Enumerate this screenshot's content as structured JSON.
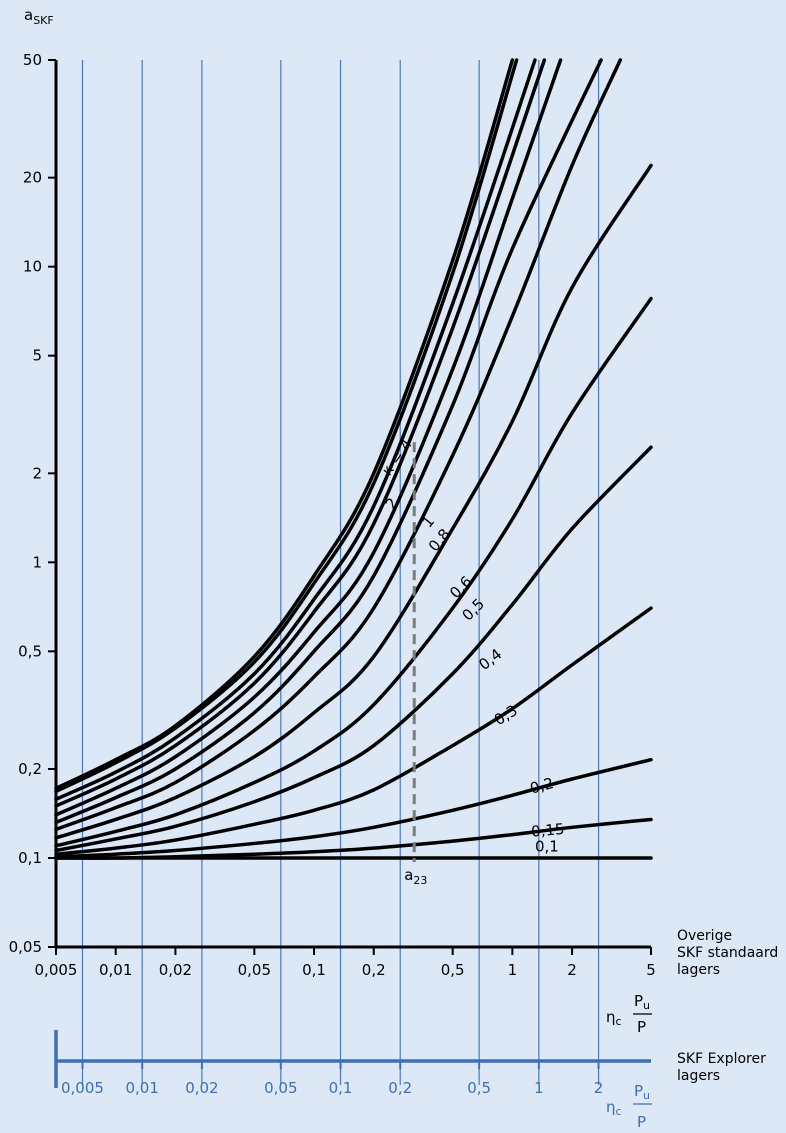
{
  "chart_data": {
    "type": "line",
    "ylabel_main": "a",
    "ylabel_sub": "SKF",
    "yscale": "log",
    "xscale": "log",
    "ylim": [
      0.05,
      50
    ],
    "xlim": [
      0.005,
      5
    ],
    "y_ticks": [
      "50",
      "20",
      "10",
      "5",
      "2",
      "1",
      "0,5",
      "0,2",
      "0,1",
      "0,05"
    ],
    "x_ticks_standard": [
      "0,005",
      "0,01",
      "0,02",
      "0,05",
      "0,1",
      "0,2",
      "0,5",
      "1",
      "2",
      "5"
    ],
    "x_ticks_explorer": [
      "0,005",
      "0,01",
      "0,02",
      "0,05",
      "0,1",
      "0,2",
      "0,5",
      "1",
      "2"
    ],
    "x_axis_label": {
      "eta": "η",
      "eta_sub": "c",
      "numerator": "P",
      "numerator_sub": "u",
      "denominator": "P"
    },
    "axis_standard_label": [
      "Overige",
      "SKF standaard",
      "lagers"
    ],
    "axis_explorer_label": [
      "SKF Explorer",
      "lagers"
    ],
    "marker_label": "a",
    "marker_sub": "23",
    "marker_x": 0.32,
    "series": [
      {
        "name": "κ = 4",
        "points": [
          [
            0.005,
            0.172
          ],
          [
            0.01,
            0.215
          ],
          [
            0.02,
            0.28
          ],
          [
            0.05,
            0.48
          ],
          [
            0.1,
            0.9
          ],
          [
            0.2,
            2.0
          ],
          [
            0.5,
            10.5
          ],
          [
            1,
            50
          ]
        ]
      },
      {
        "name": "2",
        "points": [
          [
            0.005,
            0.168
          ],
          [
            0.01,
            0.21
          ],
          [
            0.02,
            0.275
          ],
          [
            0.05,
            0.46
          ],
          [
            0.1,
            0.85
          ],
          [
            0.2,
            1.85
          ],
          [
            0.5,
            9.5
          ],
          [
            1.05,
            50
          ]
        ]
      },
      {
        "name": "1",
        "points": [
          [
            0.005,
            0.158
          ],
          [
            0.01,
            0.195
          ],
          [
            0.02,
            0.255
          ],
          [
            0.05,
            0.42
          ],
          [
            0.1,
            0.75
          ],
          [
            0.2,
            1.55
          ],
          [
            0.5,
            7.5
          ],
          [
            1.3,
            50
          ]
        ]
      },
      {
        "name": "0,8",
        "points": [
          [
            0.005,
            0.15
          ],
          [
            0.01,
            0.185
          ],
          [
            0.02,
            0.24
          ],
          [
            0.05,
            0.39
          ],
          [
            0.1,
            0.68
          ],
          [
            0.2,
            1.35
          ],
          [
            0.5,
            6.2
          ],
          [
            1.45,
            50
          ]
        ]
      },
      {
        "name": "0,6",
        "points": [
          [
            0.005,
            0.14
          ],
          [
            0.01,
            0.172
          ],
          [
            0.02,
            0.22
          ],
          [
            0.05,
            0.35
          ],
          [
            0.1,
            0.58
          ],
          [
            0.2,
            1.08
          ],
          [
            0.5,
            4.5
          ],
          [
            1,
            17
          ],
          [
            1.75,
            50
          ]
        ]
      },
      {
        "name": "0,5",
        "points": [
          [
            0.005,
            0.132
          ],
          [
            0.01,
            0.16
          ],
          [
            0.02,
            0.2
          ],
          [
            0.05,
            0.31
          ],
          [
            0.1,
            0.5
          ],
          [
            0.2,
            0.9
          ],
          [
            0.5,
            3.4
          ],
          [
            1,
            11.5
          ],
          [
            2.8,
            50
          ]
        ]
      },
      {
        "name": "0,4",
        "points": [
          [
            0.005,
            0.125
          ],
          [
            0.01,
            0.148
          ],
          [
            0.02,
            0.18
          ],
          [
            0.05,
            0.27
          ],
          [
            0.1,
            0.41
          ],
          [
            0.2,
            0.7
          ],
          [
            0.5,
            2.3
          ],
          [
            1,
            6.8
          ],
          [
            2,
            22
          ],
          [
            3.5,
            50
          ]
        ]
      },
      {
        "name": "0,3",
        "points": [
          [
            0.005,
            0.117
          ],
          [
            0.01,
            0.135
          ],
          [
            0.02,
            0.16
          ],
          [
            0.05,
            0.22
          ],
          [
            0.1,
            0.31
          ],
          [
            0.2,
            0.48
          ],
          [
            0.5,
            1.3
          ],
          [
            1,
            3.0
          ],
          [
            2,
            8.5
          ],
          [
            5,
            22
          ]
        ]
      },
      {
        "name": "",
        "points": [
          [
            0.005,
            0.11
          ],
          [
            0.01,
            0.123
          ],
          [
            0.02,
            0.14
          ],
          [
            0.05,
            0.18
          ],
          [
            0.1,
            0.23
          ],
          [
            0.2,
            0.33
          ],
          [
            0.5,
            0.7
          ],
          [
            1,
            1.4
          ],
          [
            2,
            3.2
          ],
          [
            5,
            7.8
          ]
        ]
      },
      {
        "name": "",
        "points": [
          [
            0.005,
            0.106
          ],
          [
            0.01,
            0.116
          ],
          [
            0.02,
            0.128
          ],
          [
            0.05,
            0.155
          ],
          [
            0.1,
            0.187
          ],
          [
            0.2,
            0.24
          ],
          [
            0.5,
            0.42
          ],
          [
            1,
            0.72
          ],
          [
            2,
            1.3
          ],
          [
            5,
            2.45
          ]
        ]
      },
      {
        "name": "",
        "points": [
          [
            0.005,
            0.103
          ],
          [
            0.01,
            0.108
          ],
          [
            0.02,
            0.115
          ],
          [
            0.05,
            0.13
          ],
          [
            0.1,
            0.145
          ],
          [
            0.2,
            0.17
          ],
          [
            0.5,
            0.24
          ],
          [
            1,
            0.32
          ],
          [
            2,
            0.45
          ],
          [
            5,
            0.7
          ]
        ]
      },
      {
        "name": "0,2",
        "points": [
          [
            0.005,
            0.101
          ],
          [
            0.01,
            0.103
          ],
          [
            0.02,
            0.106
          ],
          [
            0.05,
            0.112
          ],
          [
            0.1,
            0.118
          ],
          [
            0.2,
            0.127
          ],
          [
            0.5,
            0.145
          ],
          [
            1,
            0.163
          ],
          [
            2,
            0.185
          ],
          [
            5,
            0.215
          ]
        ]
      },
      {
        "name": "0,15",
        "points": [
          [
            0.005,
            0.1
          ],
          [
            0.01,
            0.1
          ],
          [
            0.02,
            0.101
          ],
          [
            0.05,
            0.103
          ],
          [
            0.1,
            0.105
          ],
          [
            0.2,
            0.108
          ],
          [
            0.5,
            0.114
          ],
          [
            1,
            0.12
          ],
          [
            2,
            0.127
          ],
          [
            5,
            0.135
          ]
        ]
      },
      {
        "name": "0,1",
        "points": [
          [
            0.005,
            0.1
          ],
          [
            5,
            0.1
          ]
        ]
      }
    ],
    "curve_labels": [
      {
        "text": "κ = 4",
        "x": 0.24,
        "y": 1.95,
        "rotate": -55
      },
      {
        "text": "2",
        "x": 0.25,
        "y": 1.5,
        "rotate": -55
      },
      {
        "text": "1",
        "x": 0.38,
        "y": 1.3,
        "rotate": -50
      },
      {
        "text": "0,8",
        "x": 0.41,
        "y": 1.08,
        "rotate": -50
      },
      {
        "text": "0,6",
        "x": 0.52,
        "y": 0.75,
        "rotate": -45
      },
      {
        "text": "0,5",
        "x": 0.6,
        "y": 0.63,
        "rotate": -45
      },
      {
        "text": "0,4",
        "x": 0.72,
        "y": 0.43,
        "rotate": -38
      },
      {
        "text": "0,3",
        "x": 0.85,
        "y": 0.28,
        "rotate": -32
      },
      {
        "text": "0,2",
        "x": 1.25,
        "y": 0.165,
        "rotate": -15
      },
      {
        "text": "0,15",
        "x": 1.25,
        "y": 0.118,
        "rotate": -5
      },
      {
        "text": "0,1",
        "x": 1.3,
        "y": 0.105,
        "rotate": 0
      }
    ]
  }
}
